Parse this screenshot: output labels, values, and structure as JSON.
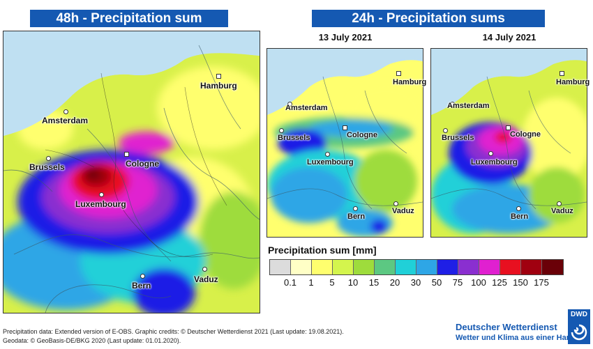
{
  "titles": {
    "left": "48h - Precipitation sum",
    "right": "24h - Precipitation sums"
  },
  "dates": {
    "first": "13 July 2021",
    "second": "14 July 2021"
  },
  "cities": {
    "hamburg": "Hamburg",
    "amsterdam": "Amsterdam",
    "brussels": "Brussels",
    "cologne": "Cologne",
    "luxembourg": "Luxembourg",
    "bern": "Bern",
    "vaduz": "Vaduz"
  },
  "legend": {
    "title": "Precipitation sum [mm]",
    "colors": [
      "#dcdcdc",
      "#ffffc6",
      "#ffff6e",
      "#d4f54d",
      "#9edc3c",
      "#5cc882",
      "#20d0d8",
      "#2ea6e6",
      "#1f1fe6",
      "#8a2fd0",
      "#e020d0",
      "#e81020",
      "#a00010",
      "#6a0008"
    ],
    "ticks": [
      "0.1",
      "1",
      "5",
      "10",
      "15",
      "20",
      "30",
      "50",
      "75",
      "100",
      "125",
      "150",
      "175"
    ]
  },
  "colors": {
    "title_bg": "#1559b2",
    "sea": "#bfe0f2"
  },
  "footer": {
    "line1": "Precipitation data: Extended version of E-OBS. Graphic credits: © Deutscher Wetterdienst 2021 (Last update: 19.08.2021).",
    "line2": "Geodata: © GeoBasis-DE/BKG 2020 (Last update: 01.01.2020)."
  },
  "brand": {
    "name": "Deutscher Wetterdienst",
    "tagline": "Wetter und Klima aus einer Hand",
    "logo_text": "DWD"
  }
}
